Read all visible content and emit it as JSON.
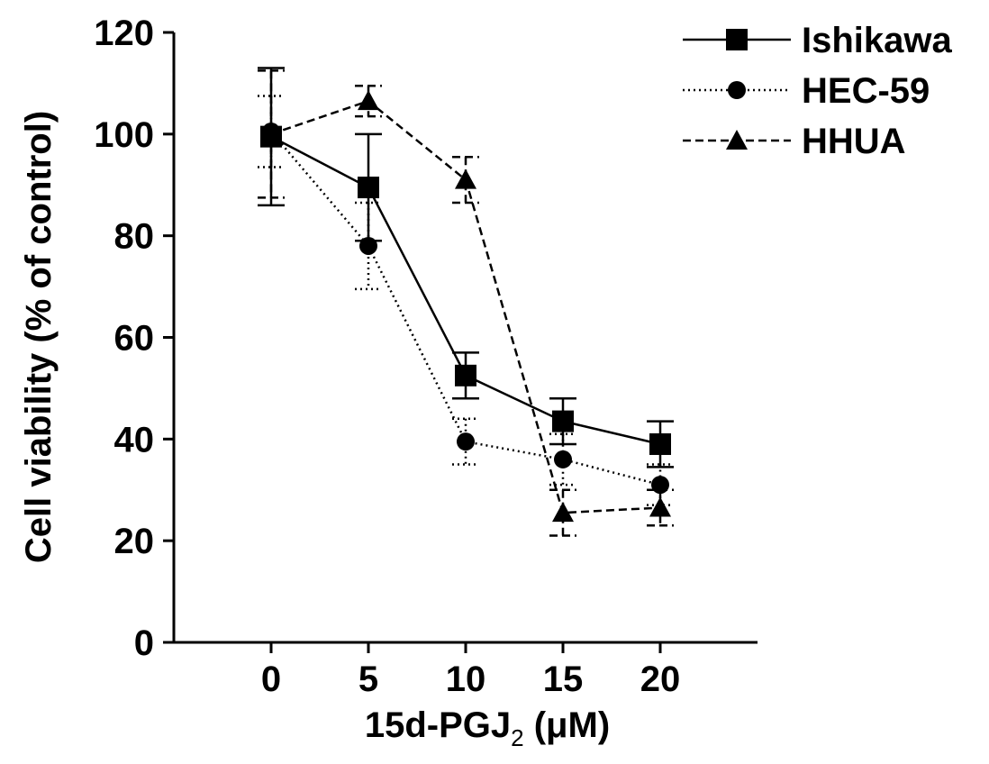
{
  "chart_data": {
    "type": "line",
    "xlabel_main": "15d-PGJ",
    "xlabel_sub": "2",
    "xlabel_unit": " (μM)",
    "ylabel": "Cell viability (% of control)",
    "categories": [
      0,
      5,
      10,
      15,
      20
    ],
    "category_labels": [
      "0",
      "5",
      "10",
      "15",
      "20"
    ],
    "xlim": [
      -5,
      25
    ],
    "ylim": [
      0,
      120
    ],
    "yticks": [
      0,
      20,
      40,
      60,
      80,
      100,
      120
    ],
    "grid": false,
    "legend_position": "top-right",
    "series": [
      {
        "name": "Ishikawa",
        "marker": "square",
        "dash": "solid",
        "values": [
          99.5,
          89.5,
          52.5,
          43.5,
          39.0
        ],
        "errors": [
          13.5,
          10.5,
          4.5,
          4.5,
          4.5
        ]
      },
      {
        "name": "HEC-59",
        "marker": "circle",
        "dash": "dotted",
        "values": [
          100.5,
          78.0,
          39.5,
          36.0,
          31.0
        ],
        "errors": [
          7.0,
          8.5,
          4.5,
          5.0,
          4.0
        ]
      },
      {
        "name": "HHUA",
        "marker": "triangle",
        "dash": "dashed",
        "values": [
          100.0,
          106.5,
          91.0,
          25.5,
          26.5
        ],
        "errors": [
          12.5,
          3.0,
          4.5,
          4.5,
          3.5
        ]
      }
    ]
  }
}
